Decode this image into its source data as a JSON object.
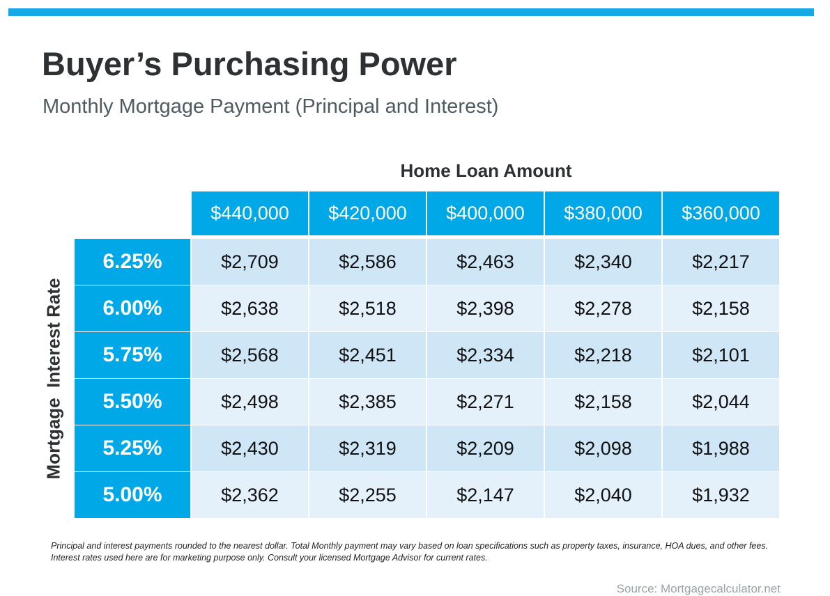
{
  "title": "Buyer’s Purchasing Power",
  "subtitle": "Monthly Mortgage Payment (Principal and Interest)",
  "colors": {
    "accent": "#00a8e8",
    "band_dark": "#cfe6f7",
    "band_light": "#e4f1fb"
  },
  "chart_data": {
    "type": "table",
    "title": "Buyer’s Purchasing Power",
    "subtitle": "Monthly Mortgage Payment (Principal and Interest)",
    "column_axis_label": "Home Loan Amount",
    "row_axis_label": "Mortgage  Interest Rate",
    "columns": [
      "$440,000",
      "$420,000",
      "$400,000",
      "$380,000",
      "$360,000"
    ],
    "rows": [
      "6.25%",
      "6.00%",
      "5.75%",
      "5.50%",
      "5.25%",
      "5.00%"
    ],
    "values": [
      [
        "$2,709",
        "$2,586",
        "$2,463",
        "$2,340",
        "$2,217"
      ],
      [
        "$2,638",
        "$2,518",
        "$2,398",
        "$2,278",
        "$2,158"
      ],
      [
        "$2,568",
        "$2,451",
        "$2,334",
        "$2,218",
        "$2,101"
      ],
      [
        "$2,498",
        "$2,385",
        "$2,271",
        "$2,158",
        "$2,044"
      ],
      [
        "$2,430",
        "$2,319",
        "$2,209",
        "$2,098",
        "$1,988"
      ],
      [
        "$2,362",
        "$2,255",
        "$2,147",
        "$2,040",
        "$1,932"
      ]
    ]
  },
  "footnote": "Principal and interest payments rounded to the nearest dollar. Total Monthly payment may vary based on loan specifications such as property taxes, insurance, HOA dues, and other fees. Interest rates used here are for marketing purpose only. Consult your licensed Mortgage Advisor for current rates.",
  "source": "Source: Mortgagecalculator.net"
}
